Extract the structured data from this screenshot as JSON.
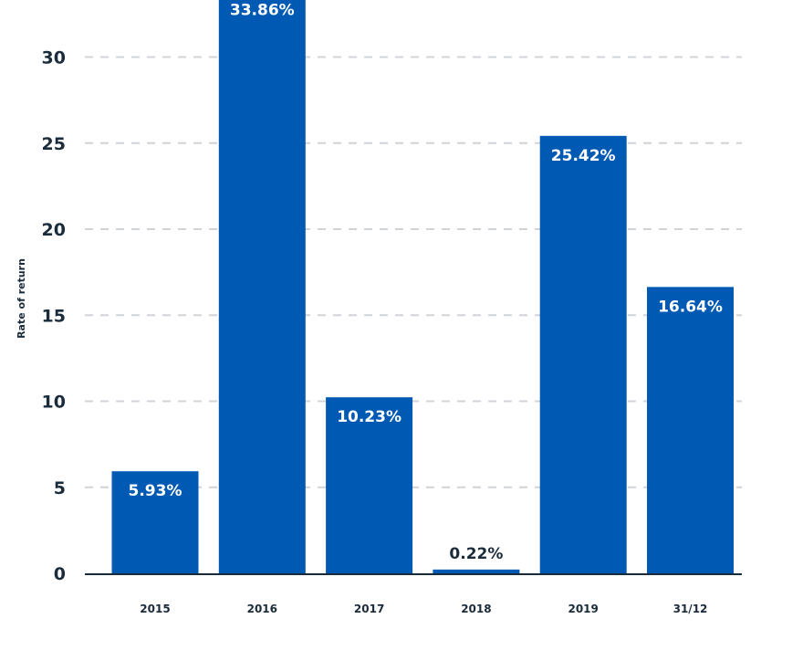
{
  "chart_data": {
    "type": "bar",
    "categories": [
      "2015",
      "2016",
      "2017",
      "2018",
      "2019",
      "31/12"
    ],
    "values": [
      5.93,
      33.86,
      10.23,
      0.22,
      25.42,
      16.64
    ],
    "data_labels": [
      "5.93%",
      "33.86%",
      "10.23%",
      "0.22%",
      "25.42%",
      "16.64%"
    ],
    "title": "",
    "xlabel": "",
    "ylabel": "Rate of return",
    "ylim": [
      0,
      32.9
    ],
    "yticks": [
      0,
      5,
      10,
      15,
      20,
      25,
      30
    ],
    "grid": true,
    "bar_color": "#005ab4",
    "axis_color": "#1a2b3c",
    "grid_color": "#d0d4d8"
  }
}
